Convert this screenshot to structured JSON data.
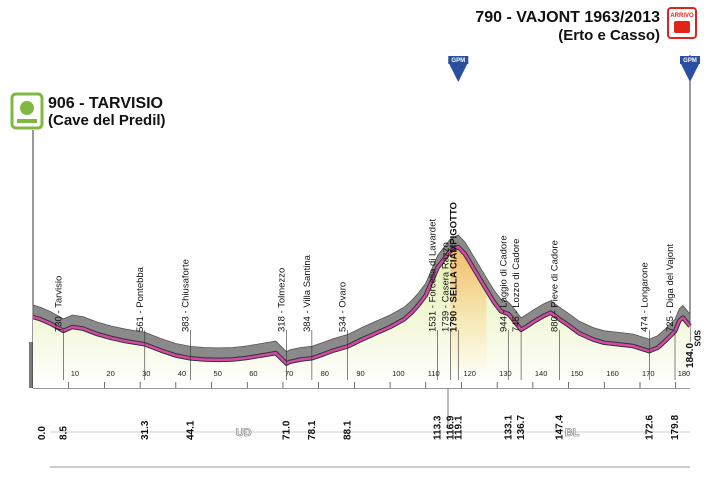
{
  "chart_data": {
    "type": "area",
    "title": "",
    "xlabel": "",
    "ylabel": "",
    "xlim": [
      0,
      184
    ],
    "ylim": [
      0,
      2000
    ],
    "grid": false,
    "legend": "none",
    "start": {
      "label": "906 - TARVISIO",
      "sub": "(Cave del Predil)"
    },
    "finish": {
      "label": "790 - VAJONT 1963/2013",
      "sub": "(Erto e Casso)",
      "badge": "ARRIVO"
    },
    "profile": [
      [
        0,
        906
      ],
      [
        2,
        880
      ],
      [
        5,
        820
      ],
      [
        8.5,
        730
      ],
      [
        11,
        780
      ],
      [
        14,
        760
      ],
      [
        18,
        690
      ],
      [
        22,
        640
      ],
      [
        26,
        600
      ],
      [
        31.3,
        561
      ],
      [
        36,
        480
      ],
      [
        40,
        420
      ],
      [
        44.1,
        383
      ],
      [
        48,
        370
      ],
      [
        52,
        365
      ],
      [
        56,
        370
      ],
      [
        60,
        390
      ],
      [
        64,
        420
      ],
      [
        68,
        450
      ],
      [
        71,
        318
      ],
      [
        72,
        340
      ],
      [
        75,
        370
      ],
      [
        78.1,
        384
      ],
      [
        81,
        430
      ],
      [
        84,
        480
      ],
      [
        88.1,
        534
      ],
      [
        92,
        620
      ],
      [
        96,
        700
      ],
      [
        100,
        780
      ],
      [
        104,
        880
      ],
      [
        106,
        960
      ],
      [
        108,
        1060
      ],
      [
        110,
        1180
      ],
      [
        113.3,
        1531
      ],
      [
        116.9,
        1739
      ],
      [
        119.1,
        1790
      ],
      [
        121,
        1700
      ],
      [
        123,
        1550
      ],
      [
        125,
        1400
      ],
      [
        127,
        1250
      ],
      [
        129,
        1100
      ],
      [
        131,
        980
      ],
      [
        133.1,
        944
      ],
      [
        134,
        900
      ],
      [
        136.7,
        745
      ],
      [
        138,
        780
      ],
      [
        140,
        840
      ],
      [
        143,
        920
      ],
      [
        145,
        960
      ],
      [
        147.4,
        880
      ],
      [
        150,
        800
      ],
      [
        153,
        700
      ],
      [
        157,
        620
      ],
      [
        160,
        580
      ],
      [
        164,
        560
      ],
      [
        168,
        540
      ],
      [
        172.6,
        474
      ],
      [
        175,
        520
      ],
      [
        177,
        600
      ],
      [
        179.8,
        725
      ],
      [
        181,
        860
      ],
      [
        182,
        900
      ],
      [
        184,
        790
      ]
    ],
    "locations": [
      {
        "km": 8.5,
        "km_label": "8.5",
        "text": "730 - Tarvisio",
        "bold": false
      },
      {
        "km": 31.3,
        "km_label": "31.3",
        "text": "561 - Pontebba",
        "bold": false
      },
      {
        "km": 44.1,
        "km_label": "44.1",
        "text": "383 - Chiusaforte",
        "bold": false
      },
      {
        "km": 71.0,
        "km_label": "71.0",
        "text": "318 - Tolmezzo",
        "bold": false
      },
      {
        "km": 78.1,
        "km_label": "78.1",
        "text": "384 - Villa Santina",
        "bold": false
      },
      {
        "km": 88.1,
        "km_label": "88.1",
        "text": "534 - Ovaro",
        "bold": false
      },
      {
        "km": 113.3,
        "km_label": "113.3",
        "text": "1531 - Forcella di Lavardet",
        "bold": false
      },
      {
        "km": 116.9,
        "km_label": "116.9",
        "text": "1739 - Casera Razzo",
        "bold": false
      },
      {
        "km": 119.1,
        "km_label": "119.1",
        "text": "1790 - SELLA CIAMPIGOTTO",
        "bold": true
      },
      {
        "km": 133.1,
        "km_label": "133.1",
        "text": "944 - Laggio di Cadore",
        "bold": false
      },
      {
        "km": 136.7,
        "km_label": "136.7",
        "text": "745 - Lozzo di Cadore",
        "bold": false
      },
      {
        "km": 147.4,
        "km_label": "147.4",
        "text": "880 - Pieve di Cadore",
        "bold": false
      },
      {
        "km": 172.6,
        "km_label": "172.6",
        "text": "474 - Longarone",
        "bold": false
      },
      {
        "km": 179.8,
        "km_label": "179.8",
        "text": "725 - Diga del Vajont",
        "bold": false
      }
    ],
    "start_km_label": "0.0",
    "finish_km_label": "184.0",
    "km_ticks": [
      10,
      20,
      30,
      40,
      50,
      60,
      70,
      80,
      90,
      100,
      110,
      120,
      130,
      140,
      150,
      160,
      170,
      180
    ],
    "gpm": [
      {
        "km": 119.1,
        "label": "GPM"
      },
      {
        "km": 184,
        "label": "GPM"
      }
    ],
    "provinces": [
      {
        "label": "UD",
        "from": 0,
        "to": 118
      },
      {
        "label": "BL",
        "from": 118,
        "to": 184
      }
    ],
    "sprint_marker": "SDS"
  },
  "colors": {
    "foreground": "#f7fbe0",
    "foreground_top": "#eef6c7",
    "mountain": "#8a8a8a",
    "ridge": "#d44aa8",
    "base": "#6a6a6a",
    "road_dark": "#1a1a1a",
    "gpm_blue": "#2a4ea0",
    "finish_red": "#e2231a",
    "start_green": "#7fb842"
  },
  "icons": {
    "start": "sprint-start-icon",
    "finish": "finish-arrivo-icon",
    "gpm": "mountain-gpm-icon"
  }
}
